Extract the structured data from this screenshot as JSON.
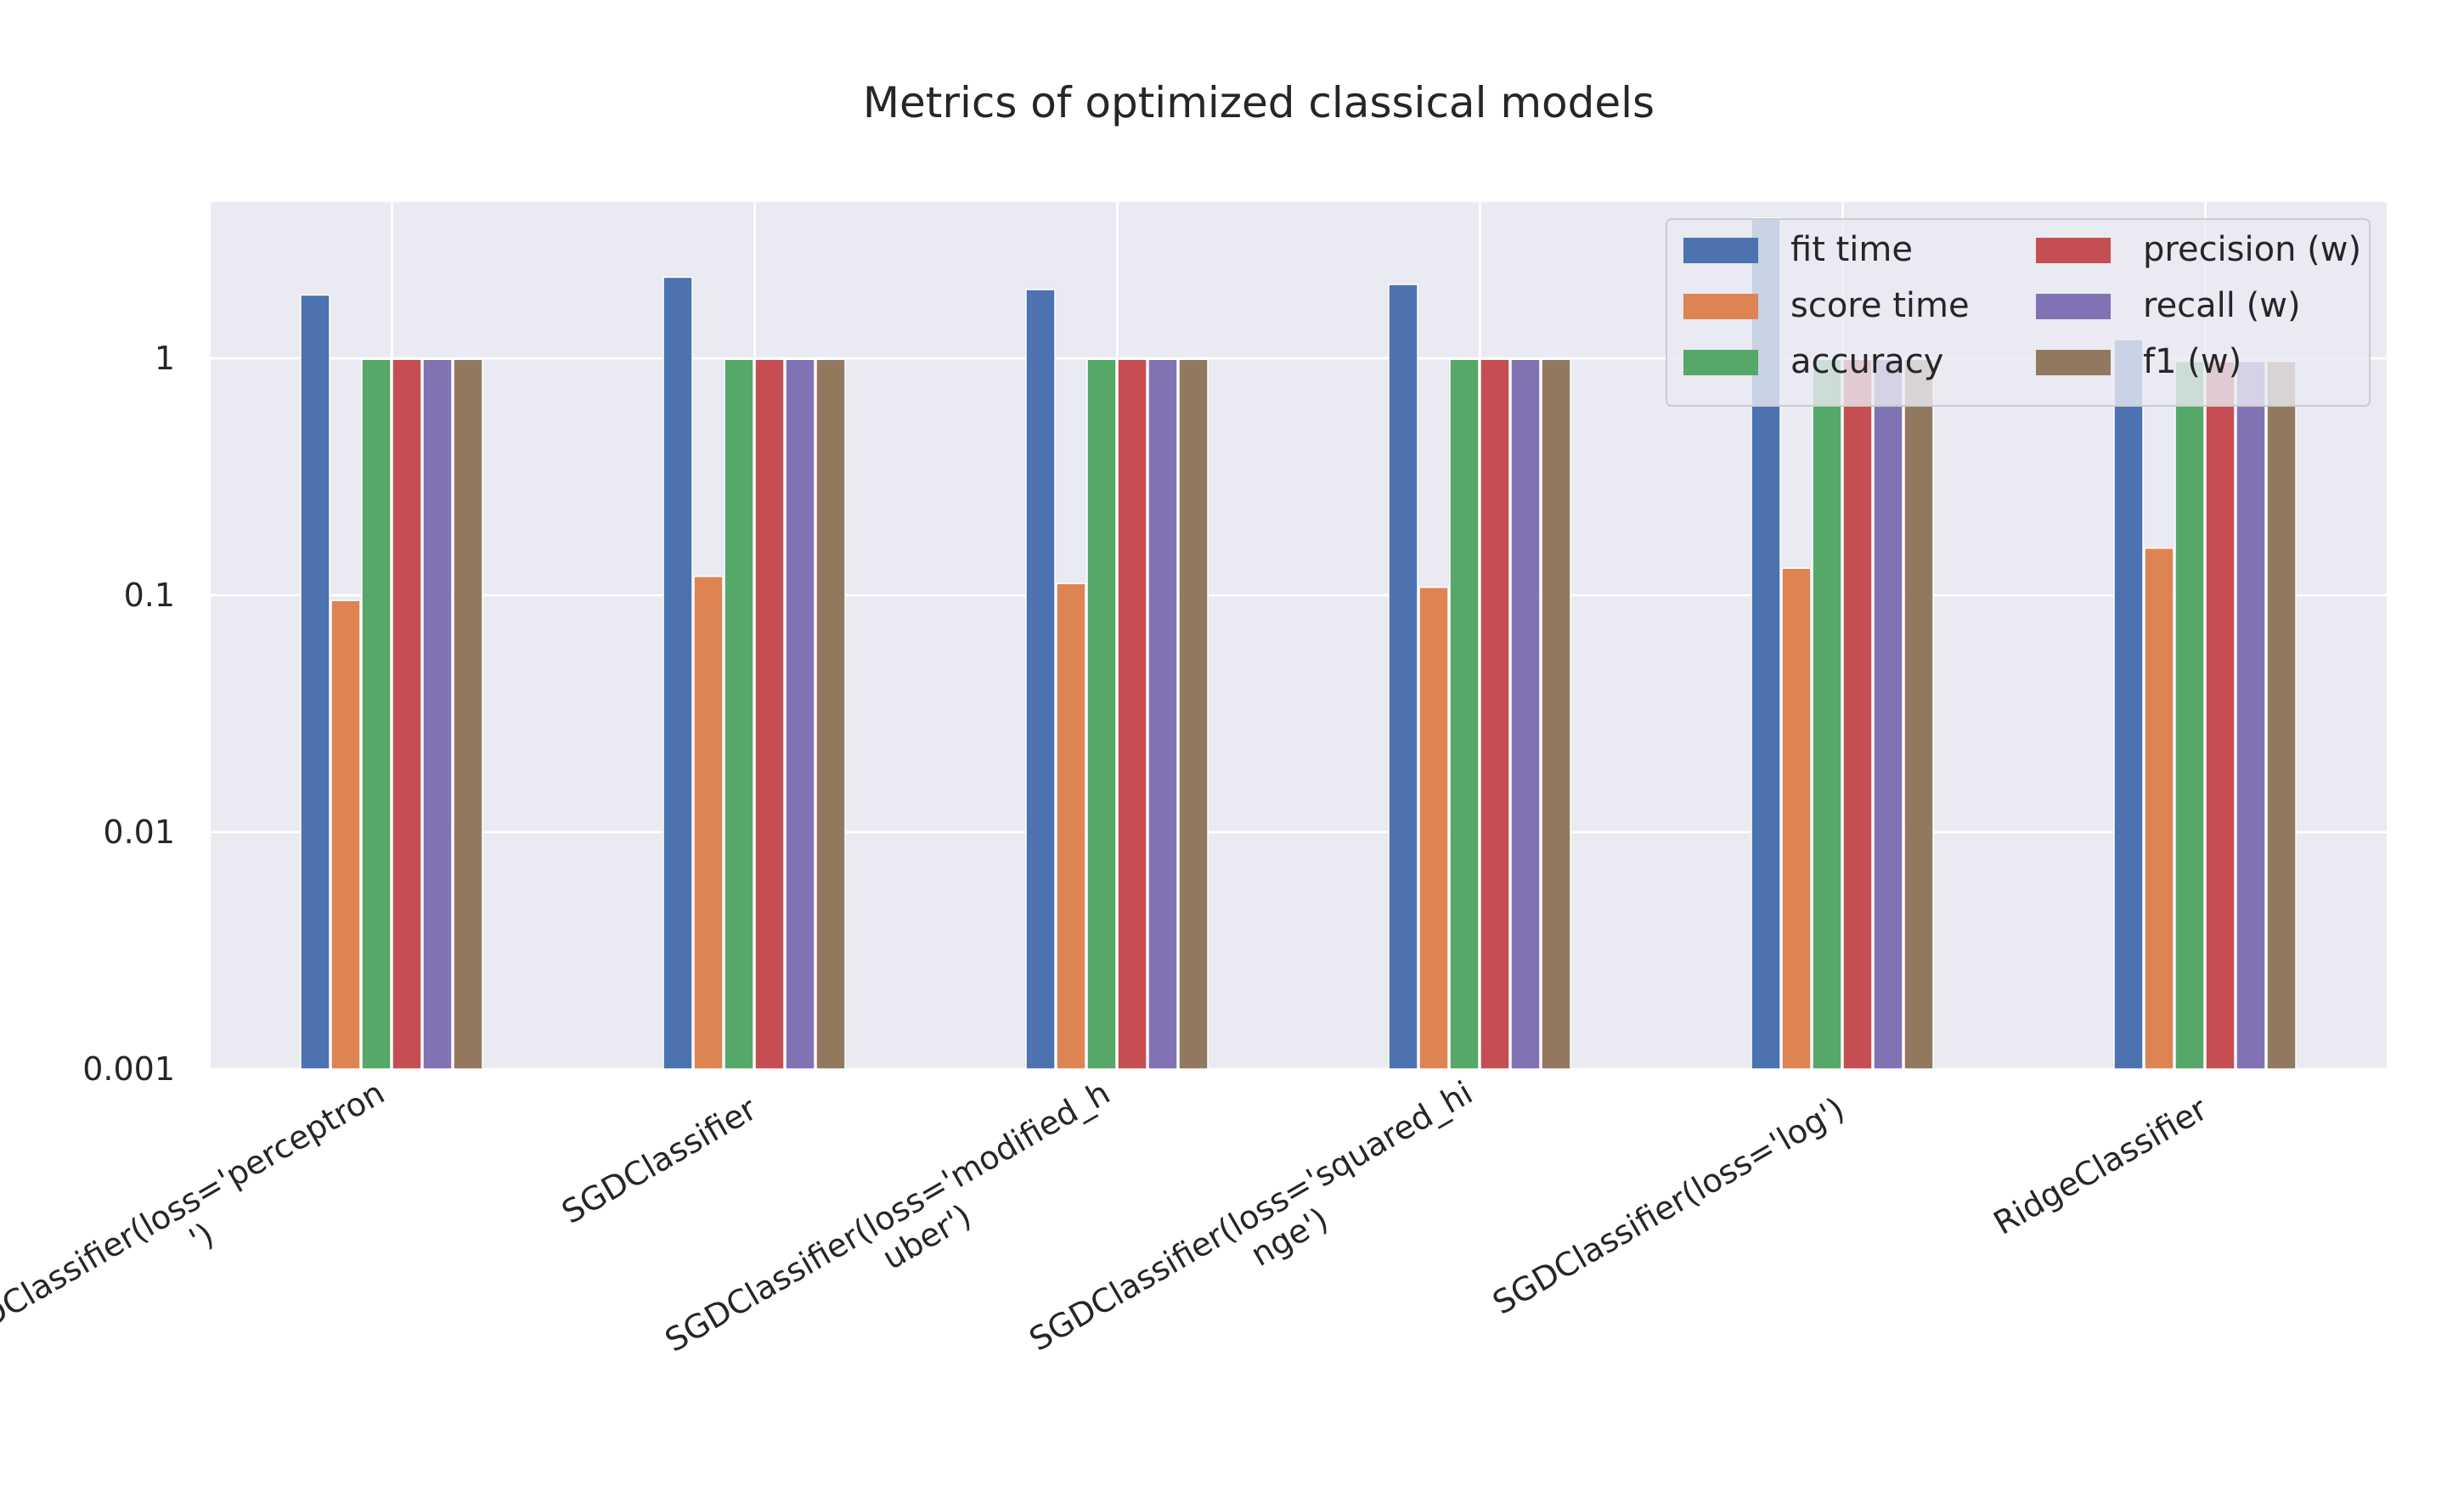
{
  "chart_data": {
    "type": "bar",
    "title": "Metrics of optimized classical models",
    "xlabel": "",
    "ylabel": "",
    "yscale": "log",
    "ylim": [
      0.001,
      5
    ],
    "yticks": [
      0.001,
      0.01,
      0.1,
      1
    ],
    "ytick_labels": [
      "0.001",
      "0.01",
      "0.1",
      "1"
    ],
    "grid": true,
    "background": "#EAEAF2",
    "legend_position": "top-right",
    "legend_columns": 2,
    "categories": [
      [
        "SGDClassifier(loss='perceptron",
        "')"
      ],
      [
        "SGDClassifier"
      ],
      [
        "SGDClassifier(loss='modified_h",
        "uber')"
      ],
      [
        "SGDClassifier(loss='squared_hi",
        "nge')"
      ],
      [
        "SGDClassifier(loss='log')"
      ],
      [
        "RidgeClassifier"
      ]
    ],
    "series": [
      {
        "name": "fit time",
        "color": "#4C72B0",
        "values": [
          1.85,
          2.2,
          1.95,
          2.05,
          3.9,
          1.2
        ]
      },
      {
        "name": "score time",
        "color": "#DD8452",
        "values": [
          0.095,
          0.12,
          0.112,
          0.108,
          0.13,
          0.158
        ]
      },
      {
        "name": "accuracy",
        "color": "#55A868",
        "values": [
          0.99,
          0.99,
          0.99,
          0.99,
          0.99,
          0.97
        ]
      },
      {
        "name": "precision (w)",
        "color": "#C44E52",
        "values": [
          0.99,
          0.99,
          0.99,
          0.99,
          0.99,
          0.97
        ]
      },
      {
        "name": "recall (w)",
        "color": "#8172B3",
        "values": [
          0.99,
          0.99,
          0.99,
          0.99,
          0.99,
          0.97
        ]
      },
      {
        "name": "f1 (w)",
        "color": "#937860",
        "values": [
          0.99,
          0.99,
          0.99,
          0.99,
          0.99,
          0.97
        ]
      }
    ]
  }
}
